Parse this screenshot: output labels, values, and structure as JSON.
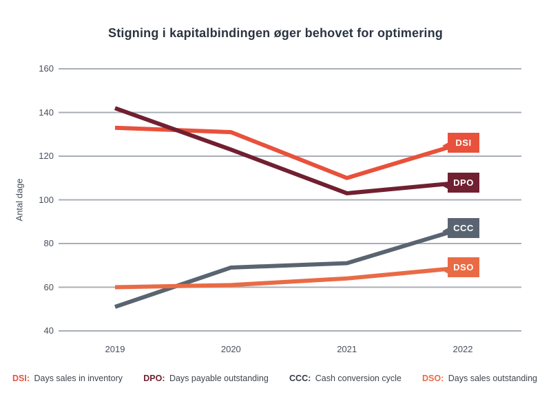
{
  "chart_data": {
    "type": "line",
    "title": "Stigning i kapitalbindingen øger behovet for optimering",
    "ylabel": "Antal dage",
    "xlabel": "",
    "categories": [
      "2019",
      "2020",
      "2021",
      "2022"
    ],
    "series": [
      {
        "name": "DSI",
        "color": "#e8513b",
        "values": [
          133,
          131,
          110,
          126
        ]
      },
      {
        "name": "DPO",
        "color": "#702031",
        "values": [
          142,
          123,
          103,
          108
        ]
      },
      {
        "name": "CCC",
        "color": "#5a6471",
        "values": [
          51,
          69,
          71,
          87
        ]
      },
      {
        "name": "DSO",
        "color": "#e96b45",
        "values": [
          60,
          61,
          64,
          69
        ]
      }
    ],
    "ylim": [
      40,
      160
    ],
    "ytick_step": 20,
    "yticks": [
      40,
      60,
      80,
      100,
      120,
      140,
      160
    ],
    "grid": "horizontal",
    "legend_position": "bottom",
    "legend": [
      {
        "abbr": "DSI:",
        "label": "Days sales in inventory",
        "color": "#e8513b"
      },
      {
        "abbr": "DPO:",
        "label": "Days payable outstanding",
        "color": "#702031"
      },
      {
        "abbr": "CCC:",
        "label": "Cash conversion cycle",
        "color": "#333b46"
      },
      {
        "abbr": "DSO:",
        "label": "Days sales outstanding",
        "color": "#e96b45"
      }
    ],
    "colors": {
      "grid": "#a9aeb5",
      "axis_text": "#474f5c",
      "title": "#2b3441",
      "background": "#ffffff"
    }
  }
}
